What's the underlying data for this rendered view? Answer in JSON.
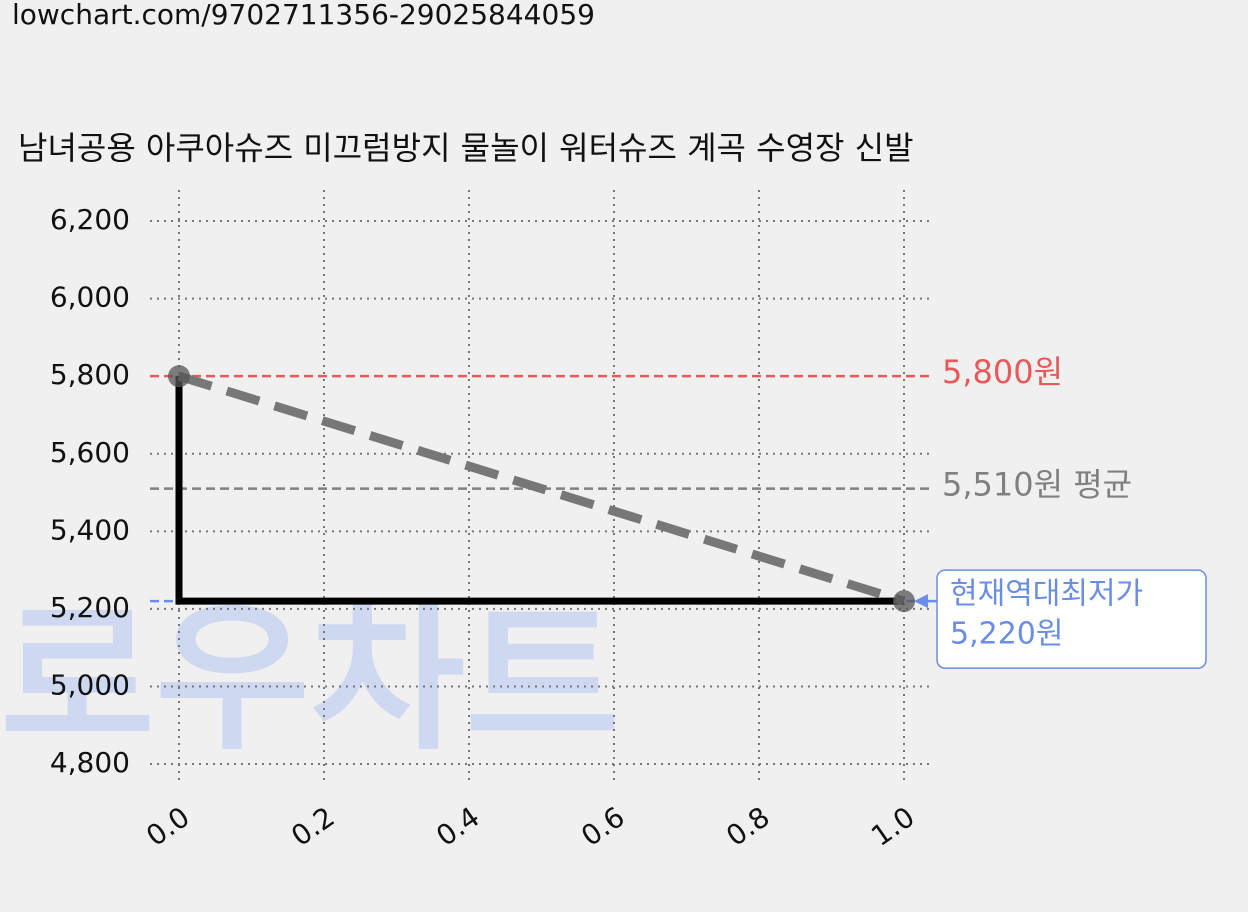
{
  "url": "lowchart.com/9702711356-29025844059",
  "chart_data": {
    "type": "line",
    "title": "남녀공용 아쿠아슈즈 미끄럼방지 물놀이 워터슈즈 계곡 수영장 신발",
    "watermark": "로우차트",
    "x": [
      0,
      1
    ],
    "series": [
      {
        "color": "#777777",
        "dashed": true,
        "markers": true,
        "values": [
          5800,
          5220
        ]
      }
    ],
    "step_series": {
      "color": "#000000",
      "x": [
        0,
        0,
        1
      ],
      "values": [
        5800,
        5220,
        5220
      ]
    },
    "hlines": [
      {
        "value": 5800,
        "label": [
          "5,800원"
        ],
        "color": "#e85a5a"
      },
      {
        "value": 5510,
        "label": [
          "5,510원 평균"
        ],
        "color": "#808080"
      },
      {
        "value": 5220,
        "label": [
          "현재역대최저가",
          "5,220원"
        ],
        "color": "#6a8ee6",
        "boxed": true
      }
    ],
    "xlim": [
      -0.04,
      1.04
    ],
    "ylim": [
      4746,
      6280
    ],
    "xticks": [
      {
        "value": 0,
        "label": "0.0"
      },
      0.2,
      0.4,
      0.6,
      0.8,
      {
        "value": 1,
        "label": "1.0"
      }
    ],
    "yticks": [
      {
        "value": 4800,
        "label": "4,800"
      },
      {
        "value": 5000,
        "label": "5,000"
      },
      {
        "value": 5200,
        "label": "5,200"
      },
      {
        "value": 5400,
        "label": "5,400"
      },
      {
        "value": 5600,
        "label": "5,600"
      },
      {
        "value": 5800,
        "label": "5,800"
      },
      {
        "value": 6000,
        "label": "6,000"
      },
      {
        "value": 6200,
        "label": "6,200"
      }
    ],
    "grid": true
  }
}
